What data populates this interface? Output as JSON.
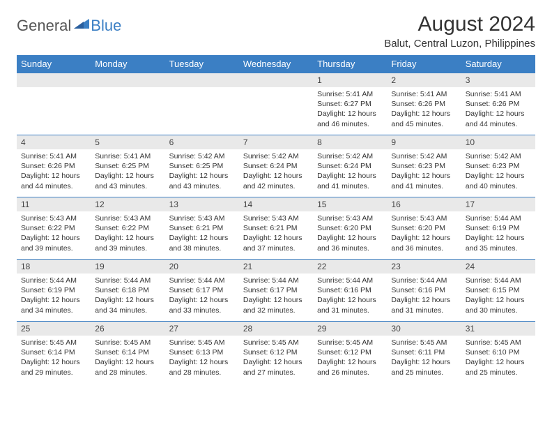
{
  "logo": {
    "text_general": "General",
    "text_blue": "Blue"
  },
  "title": "August 2024",
  "location": "Balut, Central Luzon, Philippines",
  "colors": {
    "header_bg": "#3b7fc4",
    "header_text": "#ffffff",
    "daynum_bg": "#e9e9e9",
    "row_border": "#3b7fc4",
    "body_text": "#333333"
  },
  "day_headers": [
    "Sunday",
    "Monday",
    "Tuesday",
    "Wednesday",
    "Thursday",
    "Friday",
    "Saturday"
  ],
  "weeks": [
    [
      {
        "day": "",
        "sunrise": "",
        "sunset": "",
        "daylight": ""
      },
      {
        "day": "",
        "sunrise": "",
        "sunset": "",
        "daylight": ""
      },
      {
        "day": "",
        "sunrise": "",
        "sunset": "",
        "daylight": ""
      },
      {
        "day": "",
        "sunrise": "",
        "sunset": "",
        "daylight": ""
      },
      {
        "day": "1",
        "sunrise": "Sunrise: 5:41 AM",
        "sunset": "Sunset: 6:27 PM",
        "daylight": "Daylight: 12 hours and 46 minutes."
      },
      {
        "day": "2",
        "sunrise": "Sunrise: 5:41 AM",
        "sunset": "Sunset: 6:26 PM",
        "daylight": "Daylight: 12 hours and 45 minutes."
      },
      {
        "day": "3",
        "sunrise": "Sunrise: 5:41 AM",
        "sunset": "Sunset: 6:26 PM",
        "daylight": "Daylight: 12 hours and 44 minutes."
      }
    ],
    [
      {
        "day": "4",
        "sunrise": "Sunrise: 5:41 AM",
        "sunset": "Sunset: 6:26 PM",
        "daylight": "Daylight: 12 hours and 44 minutes."
      },
      {
        "day": "5",
        "sunrise": "Sunrise: 5:41 AM",
        "sunset": "Sunset: 6:25 PM",
        "daylight": "Daylight: 12 hours and 43 minutes."
      },
      {
        "day": "6",
        "sunrise": "Sunrise: 5:42 AM",
        "sunset": "Sunset: 6:25 PM",
        "daylight": "Daylight: 12 hours and 43 minutes."
      },
      {
        "day": "7",
        "sunrise": "Sunrise: 5:42 AM",
        "sunset": "Sunset: 6:24 PM",
        "daylight": "Daylight: 12 hours and 42 minutes."
      },
      {
        "day": "8",
        "sunrise": "Sunrise: 5:42 AM",
        "sunset": "Sunset: 6:24 PM",
        "daylight": "Daylight: 12 hours and 41 minutes."
      },
      {
        "day": "9",
        "sunrise": "Sunrise: 5:42 AM",
        "sunset": "Sunset: 6:23 PM",
        "daylight": "Daylight: 12 hours and 41 minutes."
      },
      {
        "day": "10",
        "sunrise": "Sunrise: 5:42 AM",
        "sunset": "Sunset: 6:23 PM",
        "daylight": "Daylight: 12 hours and 40 minutes."
      }
    ],
    [
      {
        "day": "11",
        "sunrise": "Sunrise: 5:43 AM",
        "sunset": "Sunset: 6:22 PM",
        "daylight": "Daylight: 12 hours and 39 minutes."
      },
      {
        "day": "12",
        "sunrise": "Sunrise: 5:43 AM",
        "sunset": "Sunset: 6:22 PM",
        "daylight": "Daylight: 12 hours and 39 minutes."
      },
      {
        "day": "13",
        "sunrise": "Sunrise: 5:43 AM",
        "sunset": "Sunset: 6:21 PM",
        "daylight": "Daylight: 12 hours and 38 minutes."
      },
      {
        "day": "14",
        "sunrise": "Sunrise: 5:43 AM",
        "sunset": "Sunset: 6:21 PM",
        "daylight": "Daylight: 12 hours and 37 minutes."
      },
      {
        "day": "15",
        "sunrise": "Sunrise: 5:43 AM",
        "sunset": "Sunset: 6:20 PM",
        "daylight": "Daylight: 12 hours and 36 minutes."
      },
      {
        "day": "16",
        "sunrise": "Sunrise: 5:43 AM",
        "sunset": "Sunset: 6:20 PM",
        "daylight": "Daylight: 12 hours and 36 minutes."
      },
      {
        "day": "17",
        "sunrise": "Sunrise: 5:44 AM",
        "sunset": "Sunset: 6:19 PM",
        "daylight": "Daylight: 12 hours and 35 minutes."
      }
    ],
    [
      {
        "day": "18",
        "sunrise": "Sunrise: 5:44 AM",
        "sunset": "Sunset: 6:19 PM",
        "daylight": "Daylight: 12 hours and 34 minutes."
      },
      {
        "day": "19",
        "sunrise": "Sunrise: 5:44 AM",
        "sunset": "Sunset: 6:18 PM",
        "daylight": "Daylight: 12 hours and 34 minutes."
      },
      {
        "day": "20",
        "sunrise": "Sunrise: 5:44 AM",
        "sunset": "Sunset: 6:17 PM",
        "daylight": "Daylight: 12 hours and 33 minutes."
      },
      {
        "day": "21",
        "sunrise": "Sunrise: 5:44 AM",
        "sunset": "Sunset: 6:17 PM",
        "daylight": "Daylight: 12 hours and 32 minutes."
      },
      {
        "day": "22",
        "sunrise": "Sunrise: 5:44 AM",
        "sunset": "Sunset: 6:16 PM",
        "daylight": "Daylight: 12 hours and 31 minutes."
      },
      {
        "day": "23",
        "sunrise": "Sunrise: 5:44 AM",
        "sunset": "Sunset: 6:16 PM",
        "daylight": "Daylight: 12 hours and 31 minutes."
      },
      {
        "day": "24",
        "sunrise": "Sunrise: 5:44 AM",
        "sunset": "Sunset: 6:15 PM",
        "daylight": "Daylight: 12 hours and 30 minutes."
      }
    ],
    [
      {
        "day": "25",
        "sunrise": "Sunrise: 5:45 AM",
        "sunset": "Sunset: 6:14 PM",
        "daylight": "Daylight: 12 hours and 29 minutes."
      },
      {
        "day": "26",
        "sunrise": "Sunrise: 5:45 AM",
        "sunset": "Sunset: 6:14 PM",
        "daylight": "Daylight: 12 hours and 28 minutes."
      },
      {
        "day": "27",
        "sunrise": "Sunrise: 5:45 AM",
        "sunset": "Sunset: 6:13 PM",
        "daylight": "Daylight: 12 hours and 28 minutes."
      },
      {
        "day": "28",
        "sunrise": "Sunrise: 5:45 AM",
        "sunset": "Sunset: 6:12 PM",
        "daylight": "Daylight: 12 hours and 27 minutes."
      },
      {
        "day": "29",
        "sunrise": "Sunrise: 5:45 AM",
        "sunset": "Sunset: 6:12 PM",
        "daylight": "Daylight: 12 hours and 26 minutes."
      },
      {
        "day": "30",
        "sunrise": "Sunrise: 5:45 AM",
        "sunset": "Sunset: 6:11 PM",
        "daylight": "Daylight: 12 hours and 25 minutes."
      },
      {
        "day": "31",
        "sunrise": "Sunrise: 5:45 AM",
        "sunset": "Sunset: 6:10 PM",
        "daylight": "Daylight: 12 hours and 25 minutes."
      }
    ]
  ]
}
